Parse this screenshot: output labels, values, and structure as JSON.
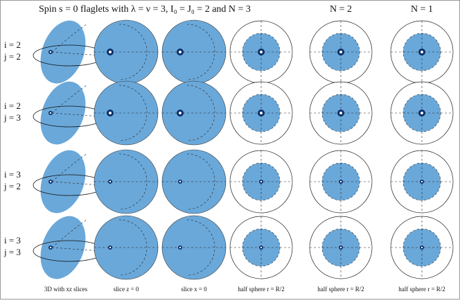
{
  "title": "Spin s = 0 flaglets with λ = ν = 3,  I₀ = J₀ = 2 and N = 3",
  "column_headers": [
    "N = 2",
    "N = 1"
  ],
  "rows": [
    {
      "i": "i = 2",
      "j": "j = 2"
    },
    {
      "i": "i = 2",
      "j": "j = 3"
    },
    {
      "i": "i = 3",
      "j": "j = 2"
    },
    {
      "i": "i = 3",
      "j": "j = 3"
    }
  ],
  "footer": [
    "3D with xz slices",
    "slice z = 0",
    "slice x = 0",
    "half sphere r = R/2",
    "half sphere r = R/2",
    "half sphere r = R/2"
  ]
}
